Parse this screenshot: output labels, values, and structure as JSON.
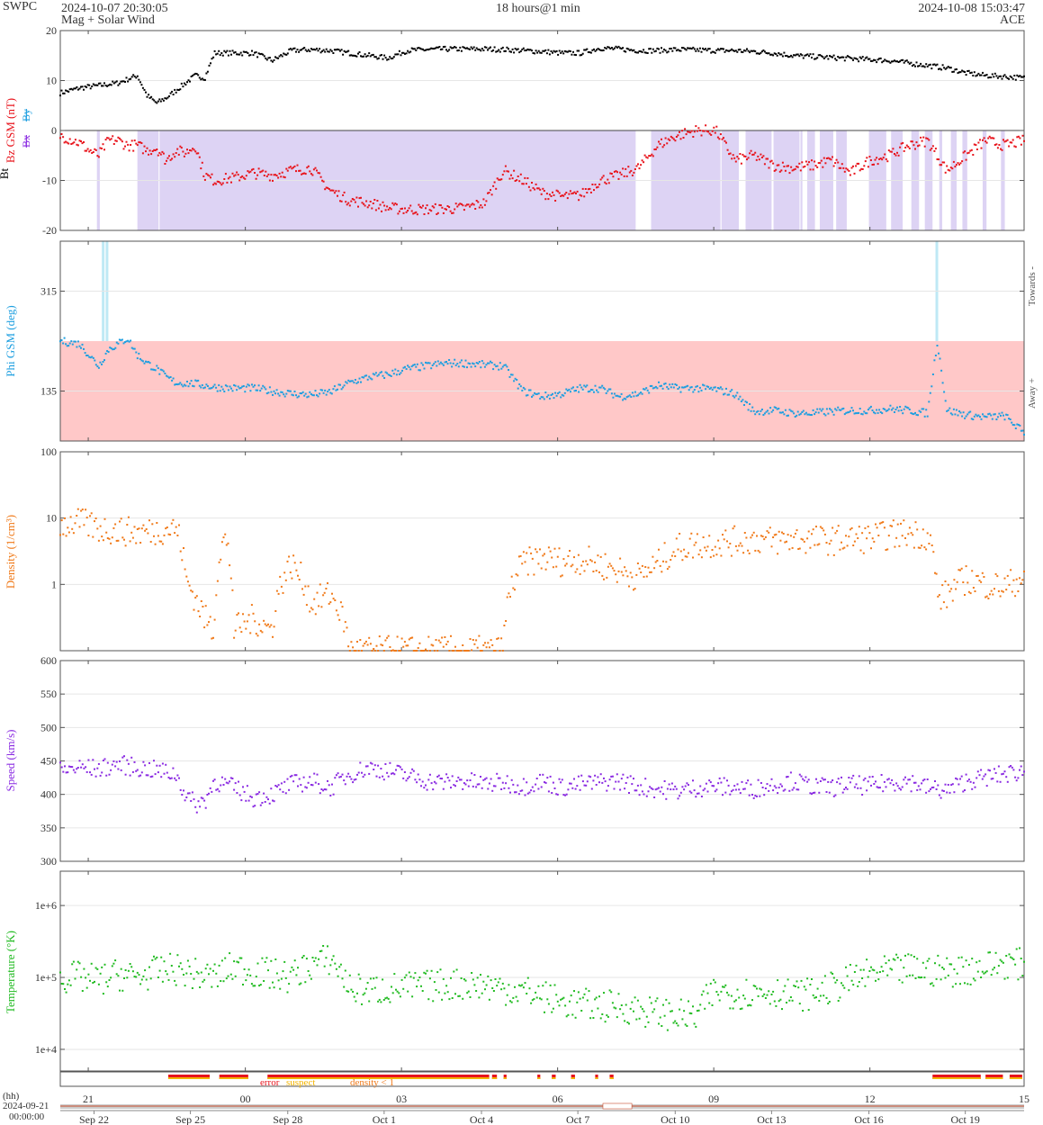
{
  "header": {
    "org": "SWPC",
    "start_time": "2024-10-07 20:30:05",
    "subtitle": "Mag + Solar Wind",
    "span": "18 hours@1 min",
    "end_time": "2024-10-08 15:03:47",
    "spacecraft": "ACE"
  },
  "colors": {
    "bt": "#000000",
    "bz": "#e8141c",
    "bx": "#8a2be2",
    "by": "#1e9fe0",
    "phi": "#1e9fe0",
    "density": "#f07a1a",
    "speed": "#8a2be2",
    "temperature": "#22bb22",
    "bz_south_fill": "#ddd3f4",
    "phi_away_fill": "#ffc8c8",
    "phi_toward_fill": "#bfe9f5"
  },
  "chart_data": [
    {
      "type": "scatter",
      "name": "mag",
      "ylabel_main": "Bz GSM (nT)",
      "ylabel_bt": "Bt",
      "legend_bx": "Bx",
      "legend_by": "By",
      "ylim": [
        -20,
        20
      ],
      "yticks": [
        "20",
        "10",
        "0",
        "-10",
        "-20"
      ],
      "series": [
        {
          "name": "Bt",
          "x": [
            0,
            2,
            4,
            6,
            8,
            9,
            10,
            11,
            12,
            13,
            14,
            15,
            16,
            18,
            20,
            22,
            24,
            26,
            28,
            30,
            32,
            34,
            36,
            38,
            40,
            42,
            44,
            46,
            48,
            50,
            52,
            54,
            56,
            58,
            60,
            62,
            64,
            66,
            68,
            70,
            72,
            74,
            76,
            78,
            80,
            82,
            84,
            86,
            88,
            90,
            92,
            94,
            96,
            98,
            100
          ],
          "y": [
            7.5,
            8.5,
            9,
            9.5,
            11,
            7,
            5.5,
            6.5,
            8,
            9.5,
            11,
            10.5,
            15.5,
            15.5,
            15.5,
            14,
            16,
            16.2,
            16,
            15.5,
            15,
            14.5,
            16,
            16.2,
            16.3,
            16.3,
            16.3,
            16.2,
            16,
            15.8,
            15.5,
            15.5,
            16.5,
            16.3,
            16,
            16,
            16.2,
            16.1,
            16,
            16,
            15.8,
            15.5,
            15,
            14.8,
            14.6,
            14.4,
            14.2,
            14,
            13.5,
            13,
            12.5,
            11.5,
            11,
            10.8,
            10.5
          ]
        },
        {
          "name": "Bz",
          "x": [
            0,
            2,
            3,
            4,
            5,
            6,
            7,
            8,
            9,
            10,
            11,
            12,
            13,
            14,
            15,
            16,
            18,
            20,
            22,
            24,
            26,
            28,
            30,
            32,
            34,
            36,
            38,
            40,
            42,
            44,
            46,
            48,
            50,
            52,
            54,
            56,
            58,
            60,
            62,
            64,
            66,
            68,
            70,
            72,
            74,
            76,
            78,
            80,
            82,
            84,
            86,
            88,
            90,
            92,
            94,
            96,
            98,
            100
          ],
          "y": [
            -1,
            -2.5,
            -4,
            -5,
            -2,
            -2,
            -3,
            -3,
            -4,
            -3.5,
            -6,
            -4,
            -4.5,
            -3,
            -9,
            -10,
            -9.5,
            -8.5,
            -9,
            -8,
            -7.5,
            -12,
            -14,
            -14.5,
            -15.5,
            -15.8,
            -15.8,
            -15.7,
            -15.5,
            -14.5,
            -8,
            -10,
            -12.5,
            -13.2,
            -13,
            -10,
            -9,
            -7.5,
            -3,
            -1,
            0,
            0,
            -6,
            -5,
            -7,
            -7.5,
            -7,
            -6,
            -8.5,
            -6,
            -5,
            -3,
            -2,
            -8,
            -5,
            -2,
            -3,
            -2
          ]
        }
      ],
      "bz_south_spans": [
        [
          3.8,
          4.1
        ],
        [
          8.0,
          10.2
        ],
        [
          10.3,
          59.7
        ],
        [
          61.3,
          68.5
        ],
        [
          68.6,
          70.4
        ],
        [
          71.1,
          73.8
        ],
        [
          74.0,
          76.7
        ],
        [
          76.8,
          77.0
        ],
        [
          77.5,
          78.3
        ],
        [
          78.8,
          80.2
        ],
        [
          80.5,
          81.6
        ],
        [
          83.9,
          85.7
        ],
        [
          86.2,
          87.4
        ],
        [
          88.3,
          89.1
        ],
        [
          89.7,
          90.5
        ],
        [
          91.2,
          91.5
        ],
        [
          92.4,
          93.0
        ],
        [
          93.6,
          94.1
        ],
        [
          95.7,
          96.1
        ],
        [
          97.6,
          98.0
        ]
      ]
    },
    {
      "type": "scatter",
      "name": "phi",
      "ylabel": "Phi GSM (deg)",
      "right_label_top": "Towards -",
      "right_label_bottom": "Away +",
      "ylim": [
        45,
        405
      ],
      "yticks": [
        "315",
        "135"
      ],
      "away_range": [
        45,
        225
      ],
      "toward_bands": [
        4.4,
        4.8,
        90.9
      ],
      "x": [
        0,
        2,
        3,
        4,
        5,
        6,
        7,
        8,
        9,
        10,
        11,
        12,
        14,
        16,
        18,
        20,
        22,
        24,
        26,
        28,
        30,
        32,
        34,
        36,
        38,
        40,
        42,
        44,
        46,
        48,
        50,
        52,
        54,
        56,
        58,
        60,
        62,
        64,
        66,
        68,
        70,
        72,
        74,
        76,
        78,
        80,
        82,
        84,
        86,
        88,
        90,
        91,
        92,
        94,
        96,
        98,
        100
      ],
      "y": [
        225,
        220,
        200,
        180,
        210,
        220,
        230,
        200,
        185,
        175,
        160,
        150,
        148,
        142,
        140,
        140,
        135,
        130,
        128,
        133,
        150,
        160,
        165,
        175,
        180,
        185,
        185,
        182,
        180,
        135,
        125,
        130,
        140,
        140,
        125,
        130,
        145,
        140,
        140,
        138,
        130,
        98,
        100,
        95,
        95,
        98,
        100,
        100,
        103,
        100,
        95,
        225,
        100,
        92,
        88,
        90,
        60
      ]
    },
    {
      "type": "scatter",
      "name": "density",
      "ylabel": "Density (1/cm³)",
      "ylog": true,
      "ylim": [
        0.1,
        100
      ],
      "yticks": [
        "100",
        "10",
        "1"
      ],
      "x": [
        0,
        2,
        4,
        6,
        8,
        10,
        11,
        12,
        13,
        14,
        15,
        16,
        17,
        18,
        20,
        22,
        24,
        26,
        28,
        30,
        32,
        34,
        36,
        38,
        40,
        42,
        44,
        46,
        48,
        50,
        52,
        54,
        56,
        58,
        60,
        62,
        64,
        66,
        68,
        70,
        72,
        74,
        76,
        78,
        80,
        82,
        84,
        86,
        88,
        90,
        91,
        92,
        94,
        96,
        98,
        100
      ],
      "y": [
        8,
        8.5,
        7,
        6.5,
        6,
        6.5,
        7,
        7,
        1.2,
        0.6,
        0.3,
        0.2,
        5,
        0.2,
        0.3,
        0.2,
        2,
        0.5,
        0.7,
        0.1,
        0.1,
        0.1,
        0.1,
        0.1,
        0.1,
        0.1,
        0.1,
        0.1,
        2,
        2.5,
        2.2,
        2.4,
        2,
        1.6,
        1.3,
        2,
        3.5,
        4,
        4.2,
        4.5,
        4.8,
        4.5,
        4.8,
        4.7,
        4.6,
        4.8,
        5,
        5.5,
        6,
        5.5,
        0.6,
        0.7,
        1.2,
        1,
        0.9,
        1.3
      ]
    },
    {
      "type": "scatter",
      "name": "speed",
      "ylabel": "Speed (km/s)",
      "ylim": [
        300,
        600
      ],
      "yticks": [
        "600",
        "550",
        "500",
        "450",
        "400",
        "350",
        "300"
      ],
      "x": [
        0,
        2,
        4,
        6,
        8,
        10,
        12,
        13,
        14,
        15,
        16,
        18,
        20,
        22,
        24,
        26,
        28,
        30,
        32,
        34,
        36,
        38,
        40,
        42,
        44,
        46,
        48,
        50,
        52,
        54,
        56,
        58,
        60,
        62,
        64,
        66,
        68,
        70,
        72,
        74,
        76,
        78,
        80,
        82,
        84,
        86,
        88,
        90,
        92,
        94,
        96,
        98,
        100
      ],
      "y": [
        435,
        440,
        438,
        445,
        440,
        436,
        430,
        400,
        385,
        390,
        420,
        410,
        395,
        400,
        415,
        420,
        410,
        430,
        440,
        435,
        428,
        420,
        418,
        420,
        415,
        418,
        412,
        420,
        410,
        415,
        418,
        420,
        412,
        408,
        405,
        410,
        412,
        410,
        408,
        415,
        420,
        412,
        410,
        415,
        412,
        418,
        420,
        410,
        405,
        420,
        425,
        430,
        435
      ]
    },
    {
      "type": "scatter",
      "name": "temperature",
      "ylabel": "Temperature (°K)",
      "ylog": true,
      "ylim": [
        5000,
        3000000
      ],
      "yticks": [
        "1e+6",
        "1e+5",
        "1e+4"
      ],
      "x": [
        0,
        2,
        4,
        6,
        8,
        10,
        12,
        14,
        16,
        18,
        20,
        22,
        24,
        26,
        28,
        30,
        32,
        34,
        36,
        38,
        40,
        42,
        44,
        46,
        48,
        50,
        52,
        54,
        56,
        58,
        60,
        62,
        64,
        66,
        68,
        70,
        72,
        74,
        76,
        78,
        80,
        82,
        84,
        86,
        88,
        90,
        92,
        94,
        96,
        98,
        100
      ],
      "y": [
        100000,
        100000,
        90000,
        110000,
        100000,
        120000,
        130000,
        110000,
        100000,
        140000,
        120000,
        110000,
        100000,
        150000,
        180000,
        70000,
        65000,
        70000,
        72000,
        75000,
        80000,
        82000,
        78000,
        70000,
        65000,
        55000,
        45000,
        42000,
        40000,
        40000,
        35000,
        32000,
        30000,
        28000,
        65000,
        60000,
        62000,
        65000,
        55000,
        60000,
        70000,
        90000,
        110000,
        120000,
        130000,
        125000,
        120000,
        130000,
        140000,
        160000,
        150000
      ]
    }
  ],
  "flags": {
    "labels": [
      "error",
      "suspect",
      "density < 1"
    ],
    "segments": [
      [
        11.2,
        15.5
      ],
      [
        16.5,
        19.5
      ],
      [
        21.5,
        44.5
      ],
      [
        44.8,
        45.3
      ],
      [
        46.0,
        46.3
      ],
      [
        49.5,
        49.8
      ],
      [
        51.0,
        51.4
      ],
      [
        53.0,
        53.4
      ],
      [
        55.5,
        55.8
      ],
      [
        57.0,
        57.4
      ],
      [
        90.5,
        95.5
      ],
      [
        96.0,
        97.8
      ],
      [
        98.5,
        99.8
      ]
    ]
  },
  "time_axis": {
    "hh_label": "(hh)",
    "date_label": "2024-09-21",
    "time_label": "00:00:00",
    "hour_ticks": [
      "21",
      "00",
      "03",
      "06",
      "09",
      "12",
      "15"
    ],
    "date_ticks": [
      "Sep 22",
      "Sep 25",
      "Sep 28",
      "Oct 1",
      "Oct 4",
      "Oct 7",
      "Oct 10",
      "Oct 13",
      "Oct 16",
      "Oct 19"
    ],
    "highlight_range": [
      56.3,
      59.3
    ]
  }
}
